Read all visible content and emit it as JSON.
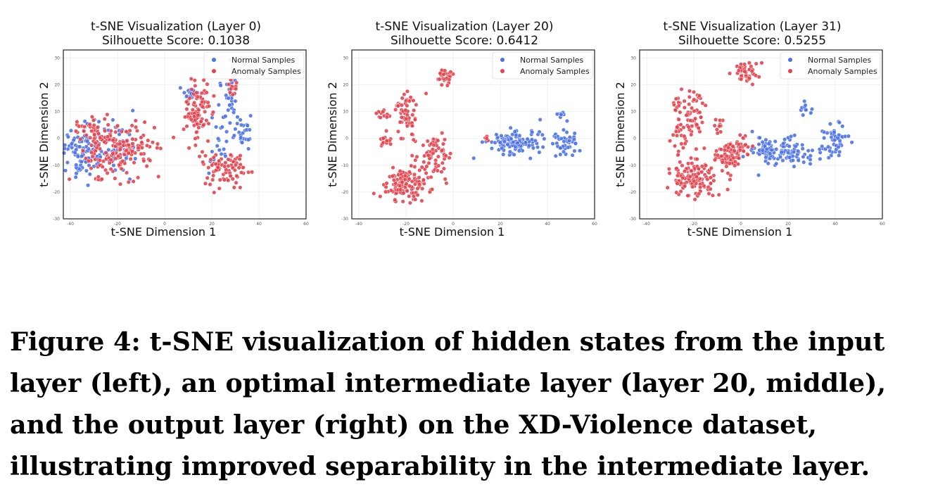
{
  "chart_data": [
    {
      "type": "scatter",
      "title": "t-SNE Visualization (Layer 0)",
      "subtitle": "Silhouette Score: 0.1038",
      "xlabel": "t-SNE Dimension 1",
      "ylabel": "t-SNE Dimension 2",
      "xlim": [
        -43,
        60
      ],
      "ylim": [
        -30,
        33
      ],
      "xticks": [
        -40,
        -20,
        0,
        20,
        40,
        60
      ],
      "yticks": [
        -30,
        -20,
        -10,
        0,
        10,
        20,
        30
      ],
      "grid": true,
      "legend": "top-right",
      "series": [
        {
          "name": "Normal Samples",
          "color": "#4c72e8",
          "clusters": [
            {
              "cx": -36,
              "cy": -5,
              "sx": 3.5,
              "sy": 5,
              "n": 90
            },
            {
              "cx": -22,
              "cy": -3,
              "sx": 5,
              "sy": 5,
              "n": 50
            },
            {
              "cx": 10,
              "cy": 17,
              "sx": 2,
              "sy": 1,
              "n": 15
            },
            {
              "cx": 27,
              "cy": 13,
              "sx": 2.5,
              "sy": 6,
              "n": 35
            },
            {
              "cx": 34,
              "cy": 2,
              "sx": 2.5,
              "sy": 3,
              "n": 25
            },
            {
              "cx": 24,
              "cy": -6,
              "sx": 3,
              "sy": 3,
              "n": 15
            }
          ]
        },
        {
          "name": "Anomaly Samples",
          "color": "#e5424d",
          "clusters": [
            {
              "cx": -20,
              "cy": -4,
              "sx": 8,
              "sy": 5,
              "n": 170
            },
            {
              "cx": -30,
              "cy": 4,
              "sx": 4,
              "sy": 2,
              "n": 25
            },
            {
              "cx": -28,
              "cy": -15,
              "sx": 0.8,
              "sy": 0.8,
              "n": 6
            },
            {
              "cx": 14,
              "cy": 10,
              "sx": 3,
              "sy": 6,
              "n": 90
            },
            {
              "cx": 26,
              "cy": -11,
              "sx": 5,
              "sy": 3,
              "n": 80
            },
            {
              "cx": 30,
              "cy": 19,
              "sx": 1.5,
              "sy": 2,
              "n": 15
            }
          ]
        }
      ]
    },
    {
      "type": "scatter",
      "title": "t-SNE Visualization (Layer 20)",
      "subtitle": "Silhouette Score: 0.6412",
      "xlabel": "t-SNE Dimension 1",
      "ylabel": "t-SNE Dimension 2",
      "xlim": [
        -43,
        60
      ],
      "ylim": [
        -30,
        33
      ],
      "xticks": [
        -40,
        -20,
        0,
        20,
        40,
        60
      ],
      "yticks": [
        -30,
        -20,
        -10,
        0,
        10,
        20,
        30
      ],
      "grid": true,
      "legend": "top-right",
      "series": [
        {
          "name": "Normal Samples",
          "color": "#4c72e8",
          "clusters": [
            {
              "cx": 25,
              "cy": -2,
              "sx": 5,
              "sy": 2,
              "n": 110
            },
            {
              "cx": 47,
              "cy": -2,
              "sx": 3,
              "sy": 2,
              "n": 45
            },
            {
              "cx": 46,
              "cy": 9,
              "sx": 0.8,
              "sy": 1.2,
              "n": 8
            },
            {
              "cx": 36,
              "cy": 2,
              "sx": 2,
              "sy": 2,
              "n": 8
            }
          ]
        },
        {
          "name": "Anomaly Samples",
          "color": "#e5424d",
          "clusters": [
            {
              "cx": -3,
              "cy": 23,
              "sx": 2,
              "sy": 1.5,
              "n": 30
            },
            {
              "cx": -20,
              "cy": 10,
              "sx": 2.5,
              "sy": 4,
              "n": 60
            },
            {
              "cx": -29,
              "cy": -1,
              "sx": 1.5,
              "sy": 1.5,
              "n": 15
            },
            {
              "cx": -30,
              "cy": 9,
              "sx": 1.5,
              "sy": 1,
              "n": 12
            },
            {
              "cx": -20,
              "cy": -17,
              "sx": 5,
              "sy": 3,
              "n": 120
            },
            {
              "cx": -8,
              "cy": -7,
              "sx": 3,
              "sy": 4,
              "n": 60
            },
            {
              "cx": 14,
              "cy": 0,
              "sx": 0.5,
              "sy": 0.5,
              "n": 4
            }
          ]
        }
      ]
    },
    {
      "type": "scatter",
      "title": "t-SNE Visualization (Layer 31)",
      "subtitle": "Silhouette Score: 0.5255",
      "xlabel": "t-SNE Dimension 1",
      "ylabel": "t-SNE Dimension 2",
      "xlim": [
        -43,
        60
      ],
      "ylim": [
        -30,
        33
      ],
      "xticks": [
        -40,
        -20,
        0,
        20,
        40,
        60
      ],
      "yticks": [
        -30,
        -20,
        -10,
        0,
        10,
        20,
        30
      ],
      "grid": true,
      "legend": "top-right",
      "series": [
        {
          "name": "Normal Samples",
          "color": "#4c72e8",
          "clusters": [
            {
              "cx": 18,
              "cy": -5,
              "sx": 7,
              "sy": 2.5,
              "n": 110
            },
            {
              "cx": 40,
              "cy": 0,
              "sx": 3,
              "sy": 3,
              "n": 50
            },
            {
              "cx": 27,
              "cy": 11,
              "sx": 1,
              "sy": 1.5,
              "n": 12
            },
            {
              "cx": 8,
              "cy": -3,
              "sx": 2,
              "sy": 2,
              "n": 15
            }
          ]
        },
        {
          "name": "Anomaly Samples",
          "color": "#e5424d",
          "clusters": [
            {
              "cx": 2,
              "cy": 25,
              "sx": 3,
              "sy": 2,
              "n": 40
            },
            {
              "cx": -20,
              "cy": 10,
              "sx": 2.5,
              "sy": 4,
              "n": 50
            },
            {
              "cx": -27,
              "cy": 12,
              "sx": 1,
              "sy": 1.5,
              "n": 10
            },
            {
              "cx": -26,
              "cy": 1,
              "sx": 2,
              "sy": 3,
              "n": 25
            },
            {
              "cx": -20,
              "cy": -15,
              "sx": 5,
              "sy": 4,
              "n": 130
            },
            {
              "cx": -6,
              "cy": -7,
              "sx": 3,
              "sy": 3,
              "n": 60
            },
            {
              "cx": 0,
              "cy": -3,
              "sx": 2.5,
              "sy": 1.5,
              "n": 25
            },
            {
              "cx": -9,
              "cy": 4,
              "sx": 1,
              "sy": 1.5,
              "n": 10
            }
          ]
        }
      ]
    }
  ],
  "caption": "Figure 4: t-SNE visualization of hidden states from the input layer (left), an optimal intermediate layer (layer 20, middle), and the output layer (right) on the XD-Violence dataset, illustrating improved separability in the intermediate layer."
}
